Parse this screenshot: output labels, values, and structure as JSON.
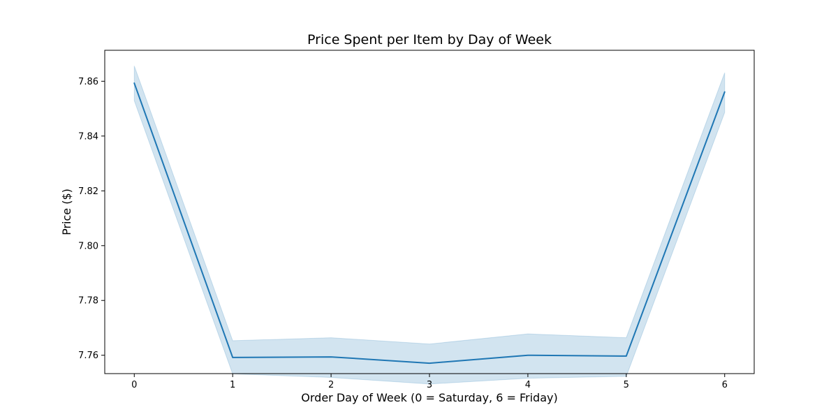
{
  "chart_data": {
    "type": "line",
    "title": "Price Spent per Item by Day of Week",
    "xlabel": "Order Day of Week (0 = Saturday, 6 = Friday)",
    "ylabel": "Price ($)",
    "x": [
      0,
      1,
      2,
      3,
      4,
      5,
      6
    ],
    "x_ticks": [
      "0",
      "1",
      "2",
      "3",
      "4",
      "5",
      "6"
    ],
    "y_ticks": [
      "7.76",
      "7.78",
      "7.80",
      "7.82",
      "7.84",
      "7.86"
    ],
    "xlim": [
      -0.3,
      6.3
    ],
    "ylim": [
      7.7533,
      7.8713
    ],
    "grid": false,
    "legend": "none",
    "series": [
      {
        "values": [
          7.8593,
          7.7592,
          7.7594,
          7.7571,
          7.76,
          7.7597,
          7.8561
        ],
        "ci_lower": [
          7.8529,
          7.7532,
          7.7519,
          7.7495,
          7.7516,
          7.7523,
          7.8486
        ],
        "ci_upper": [
          7.8656,
          7.7653,
          7.7664,
          7.7641,
          7.7678,
          7.7664,
          7.8631
        ],
        "color": "#1f77b4",
        "band_color": "#1f77b4"
      }
    ]
  }
}
